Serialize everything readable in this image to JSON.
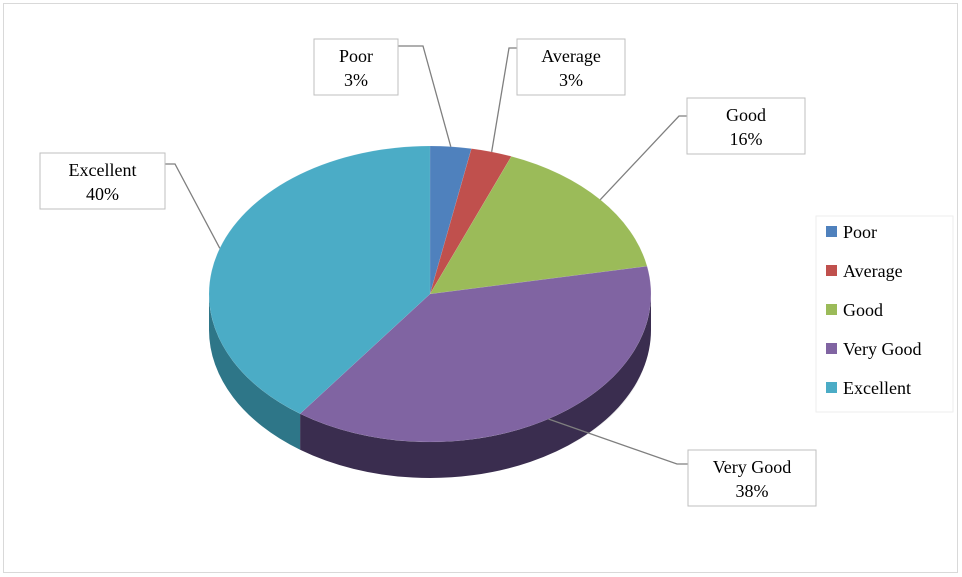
{
  "chart_data": {
    "type": "pie",
    "categories": [
      "Poor",
      "Average",
      "Good",
      "Very Good",
      "Excellent"
    ],
    "values": [
      3,
      3,
      16,
      38,
      40
    ],
    "data_labels": [
      "3%",
      "3%",
      "16%",
      "38%",
      "40%"
    ],
    "colors": [
      "#4f81bd",
      "#c0504d",
      "#9bbb59",
      "#8064a2",
      "#4bacc6"
    ],
    "side_colors": [
      "#2f4f7a",
      "#7a2f2d",
      "#5f7636",
      "#3a2d4f",
      "#2e7688"
    ],
    "legend_position": "right",
    "style": "3d-pie"
  }
}
